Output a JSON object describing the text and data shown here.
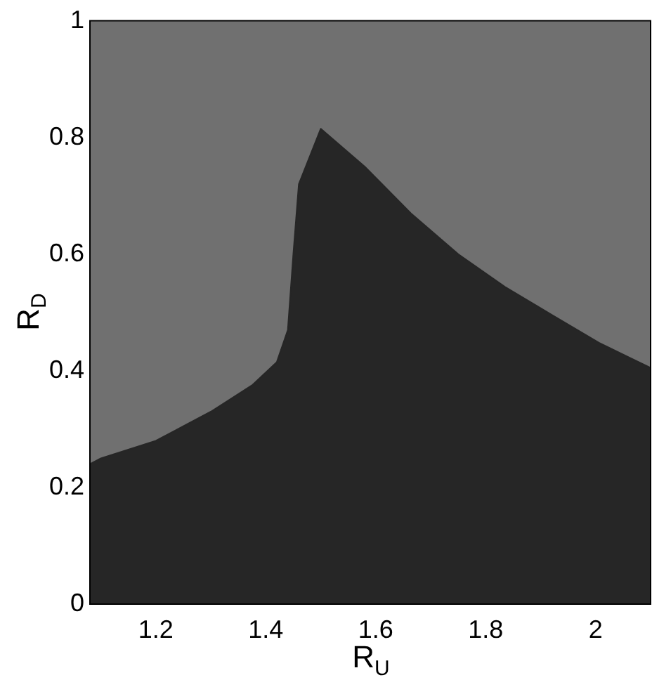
{
  "chart_data": {
    "type": "area",
    "xlabel": "R$_{U}$",
    "ylabel": "R$_{D}$",
    "x": [
      1.08,
      1.1,
      1.2,
      1.3,
      1.376,
      1.42,
      1.44,
      1.45,
      1.46,
      1.5,
      1.58,
      1.664,
      1.75,
      1.835,
      1.92,
      2.006,
      2.1
    ],
    "series": [
      {
        "color": "#262626",
        "values": [
          0.24,
          0.25,
          0.28,
          0.33,
          0.376,
          0.415,
          0.47,
          0.6,
          0.72,
          0.815,
          0.75,
          0.67,
          0.6,
          0.544,
          0.496,
          0.448,
          0.405
        ]
      }
    ],
    "xlim": [
      1.08,
      2.1
    ],
    "ylim": [
      0,
      1
    ],
    "xticks": [
      1.2,
      1.4,
      1.6,
      1.8,
      2
    ],
    "yticks": [
      0,
      0.2,
      0.4,
      0.6,
      0.8,
      1
    ]
  }
}
